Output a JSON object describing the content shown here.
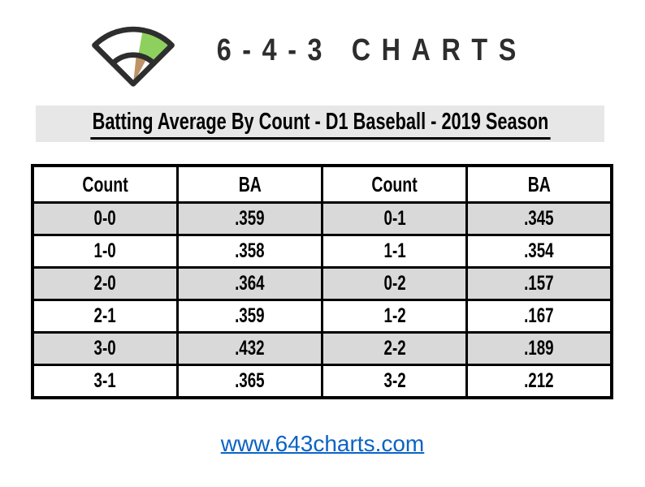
{
  "brand": {
    "name": "6-4-3 CHARTS",
    "icon": "baseball-field-icon"
  },
  "title": "Batting Average By Count - D1 Baseball - 2019 Season",
  "table": {
    "columns": [
      "Count",
      "BA",
      "Count",
      "BA"
    ],
    "rows": [
      [
        "0-0",
        ".359",
        "0-1",
        ".345"
      ],
      [
        "1-0",
        ".358",
        "1-1",
        ".354"
      ],
      [
        "2-0",
        ".364",
        "0-2",
        ".157"
      ],
      [
        "2-1",
        ".359",
        "1-2",
        ".167"
      ],
      [
        "3-0",
        ".432",
        "2-2",
        ".189"
      ],
      [
        "3-1",
        ".365",
        "3-2",
        ".212"
      ]
    ],
    "shaded_row_indices": [
      0,
      2,
      4
    ]
  },
  "footer": {
    "link": "www.643charts.com"
  },
  "colors": {
    "ink": "#2d2d2d",
    "band": "#e7e7e7",
    "shade": "#d9d9d9",
    "link": "#0b63c4",
    "logo_green": "#8ed05e",
    "logo_brown": "#bf9368",
    "logo_outline": "#2e2e2e"
  },
  "chart_data": {
    "type": "table",
    "title": "Batting Average By Count - D1 Baseball - 2019 Season",
    "columns": [
      "Count",
      "BA",
      "Count",
      "BA"
    ],
    "pairs": [
      {
        "count": "0-0",
        "ba": 0.359
      },
      {
        "count": "1-0",
        "ba": 0.358
      },
      {
        "count": "2-0",
        "ba": 0.364
      },
      {
        "count": "2-1",
        "ba": 0.359
      },
      {
        "count": "3-0",
        "ba": 0.432
      },
      {
        "count": "3-1",
        "ba": 0.365
      },
      {
        "count": "0-1",
        "ba": 0.345
      },
      {
        "count": "1-1",
        "ba": 0.354
      },
      {
        "count": "0-2",
        "ba": 0.157
      },
      {
        "count": "1-2",
        "ba": 0.167
      },
      {
        "count": "2-2",
        "ba": 0.189
      },
      {
        "count": "3-2",
        "ba": 0.212
      }
    ]
  }
}
